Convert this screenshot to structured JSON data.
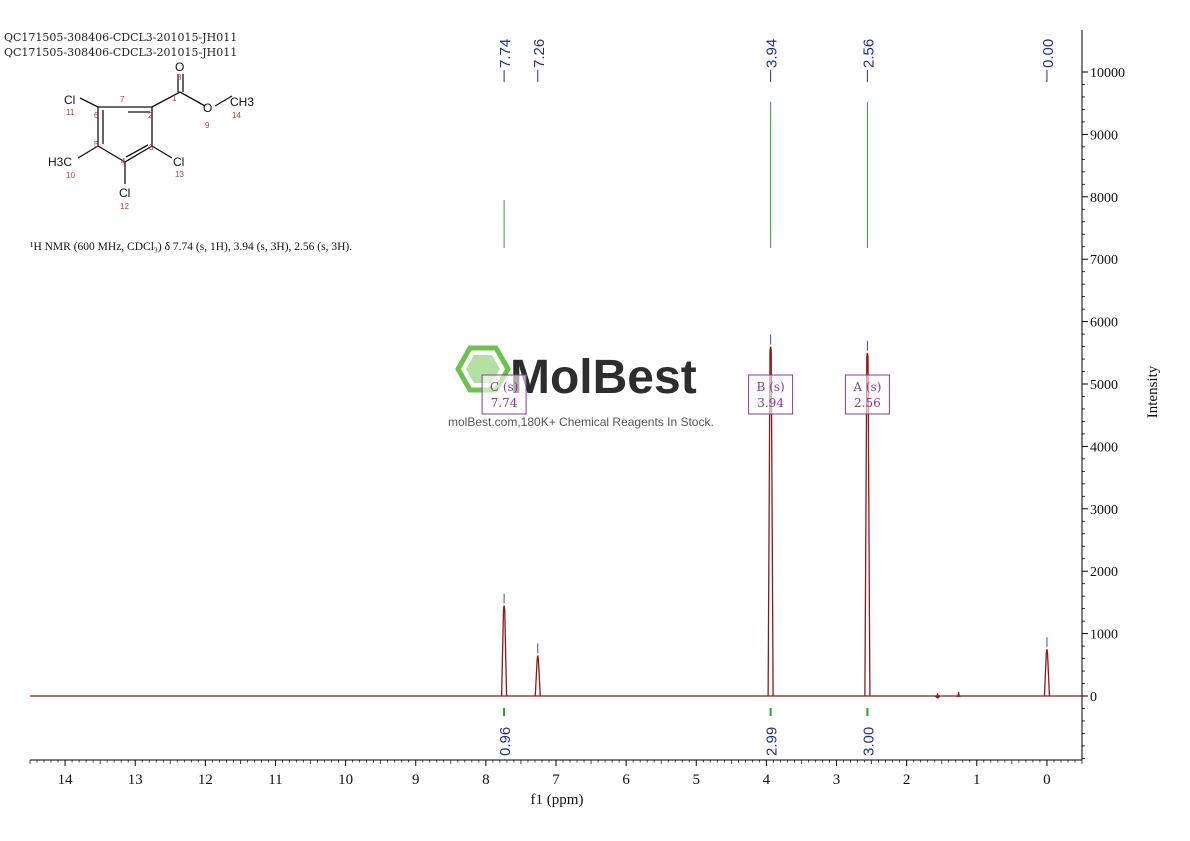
{
  "header": {
    "line1": "QC171505-308406-CDCL3-201015-JH011",
    "line2": "QC171505-308406-CDCL3-201015-JH011"
  },
  "structure": {
    "atoms": {
      "o8": "O",
      "n8": "8",
      "n1": "1",
      "n7": "7",
      "n2": "2",
      "o9": "O",
      "n9": "9",
      "ch3": "CH3",
      "n14": "14",
      "cl11": "Cl",
      "n11": "11",
      "n6": "6",
      "n5": "5",
      "n4": "4",
      "n3": "3",
      "h3c": "H3C",
      "n10": "10",
      "cl13": "Cl",
      "n13": "13",
      "cl12": "Cl",
      "n12": "12"
    }
  },
  "nmr_text": "¹H NMR (600 MHz, CDCl₃) δ 7.74 (s, 1H), 3.94 (s, 3H), 2.56 (s, 3H).",
  "watermark": {
    "brand": "MolBest",
    "tagline": "molBest.com,180K+ Chemical Reagents In Stock."
  },
  "colors": {
    "spectrum": "#8b1a1a",
    "peak_label": "#1f2f8f",
    "integral": "#2e9e2e",
    "multiplet": "#8a3a9a",
    "axis": "#000000",
    "watermark": "#6cc24a"
  },
  "chart_data": {
    "type": "line",
    "xlabel": "f1 (ppm)",
    "ylabel": "Intensity",
    "xlim": [
      14.5,
      -0.5
    ],
    "ylim": [
      -1000,
      10800
    ],
    "x_ticks": [
      14,
      13,
      12,
      11,
      10,
      9,
      8,
      7,
      6,
      5,
      4,
      3,
      2,
      1,
      0
    ],
    "y_ticks": [
      0,
      1000,
      2000,
      3000,
      4000,
      5000,
      6000,
      7000,
      8000,
      9000,
      10000
    ],
    "peaks": [
      {
        "ppm": 7.74,
        "intensity": 1450
      },
      {
        "ppm": 7.26,
        "intensity": 650
      },
      {
        "ppm": 3.94,
        "intensity": 5600
      },
      {
        "ppm": 2.56,
        "intensity": 5500
      },
      {
        "ppm": 0.0,
        "intensity": 750
      },
      {
        "ppm": 1.56,
        "intensity": 40
      },
      {
        "ppm": 1.26,
        "intensity": 60
      }
    ],
    "peak_labels": [
      "7.74",
      "7.26",
      "3.94",
      "2.56",
      "0.00"
    ],
    "peak_label_ppm": [
      7.74,
      7.26,
      3.94,
      2.56,
      0.0
    ],
    "integrals": [
      {
        "ppm": 7.74,
        "value": "0.96"
      },
      {
        "ppm": 3.94,
        "value": "2.99"
      },
      {
        "ppm": 2.56,
        "value": "3.00"
      }
    ],
    "multiplets": [
      {
        "ppm": 7.74,
        "id": "C",
        "type": "(s)",
        "shift": "7.74"
      },
      {
        "ppm": 3.94,
        "id": "B",
        "type": "(s)",
        "shift": "3.94"
      },
      {
        "ppm": 2.56,
        "id": "A",
        "type": "(s)",
        "shift": "2.56"
      }
    ]
  }
}
